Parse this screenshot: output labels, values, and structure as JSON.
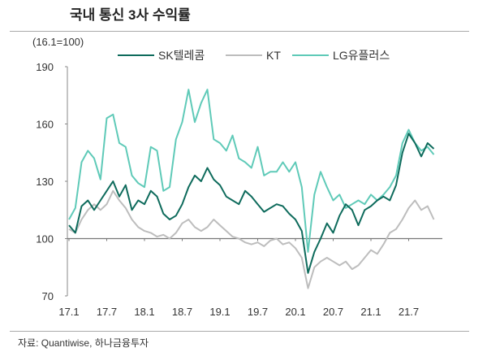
{
  "chart_data": {
    "type": "line",
    "title": "국내 통신 3사 수익률",
    "unit_label": "(16.1=100)",
    "source": "자료: Quantiwise, 하나금융투자",
    "ylim": [
      70,
      190
    ],
    "yticks": [
      "70",
      "100",
      "130",
      "160",
      "190"
    ],
    "xticks": [
      "17.1",
      "17.7",
      "18.1",
      "18.7",
      "19.1",
      "19.7",
      "20.1",
      "20.7",
      "21.1",
      "21.7"
    ],
    "baseline": 100,
    "grid": false,
    "legend_position": "top",
    "x_start": "2017-01",
    "x_frequency": "monthly",
    "series": [
      {
        "name": "SK텔레콤",
        "color": "#0e6b5c",
        "values": [
          107,
          103,
          117,
          120,
          115,
          120,
          125,
          130,
          122,
          128,
          115,
          120,
          118,
          125,
          122,
          113,
          110,
          112,
          118,
          127,
          133,
          130,
          137,
          131,
          128,
          122,
          120,
          118,
          125,
          122,
          118,
          114,
          116,
          118,
          117,
          113,
          110,
          104,
          82,
          93,
          100,
          108,
          103,
          112,
          118,
          115,
          107,
          115,
          117,
          120,
          122,
          120,
          128,
          145,
          155,
          150,
          143,
          150,
          147
        ]
      },
      {
        "name": "KT",
        "color": "#bdbdbd",
        "values": [
          105,
          103,
          110,
          115,
          118,
          115,
          118,
          125,
          120,
          116,
          110,
          106,
          104,
          103,
          101,
          102,
          100,
          103,
          108,
          110,
          106,
          104,
          106,
          110,
          107,
          104,
          101,
          100,
          98,
          97,
          98,
          96,
          99,
          100,
          97,
          98,
          95,
          90,
          74,
          85,
          88,
          90,
          88,
          86,
          88,
          84,
          86,
          90,
          94,
          92,
          97,
          103,
          105,
          110,
          116,
          120,
          115,
          117,
          110
        ]
      },
      {
        "name": "LG유플러스",
        "color": "#5fcab8",
        "values": [
          110,
          116,
          140,
          146,
          142,
          131,
          163,
          165,
          150,
          148,
          133,
          129,
          127,
          148,
          146,
          125,
          127,
          152,
          161,
          178,
          161,
          171,
          178,
          152,
          150,
          146,
          154,
          142,
          140,
          137,
          148,
          133,
          135,
          135,
          140,
          135,
          140,
          127,
          93,
          123,
          135,
          127,
          120,
          123,
          116,
          118,
          120,
          118,
          123,
          120,
          123,
          127,
          133,
          150,
          157,
          150,
          146,
          148,
          144
        ]
      }
    ]
  }
}
